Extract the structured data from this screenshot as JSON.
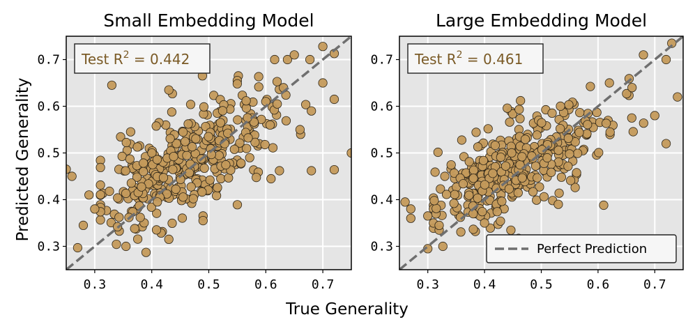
{
  "figure": {
    "xlabel": "True Generality",
    "ylabel": "Predicted Generality"
  },
  "chart_data": [
    {
      "type": "scatter",
      "title": "Small Embedding Model",
      "xlabel": "True Generality",
      "ylabel": "Predicted Generality",
      "xlim": [
        0.25,
        0.75
      ],
      "ylim": [
        0.25,
        0.75
      ],
      "xticks": [
        "0.3",
        "0.4",
        "0.5",
        "0.6",
        "0.7"
      ],
      "yticks": [
        "0.3",
        "0.4",
        "0.5",
        "0.6",
        "0.7"
      ],
      "grid": true,
      "annotation": {
        "prefix": "Test R",
        "sup": "2",
        "suffix": " = 0.442"
      },
      "reference_line": "y = x",
      "seed": 11,
      "slope": 0.58,
      "spread": 0.055,
      "n": 360,
      "points": [
        [
          0.33,
          0.645
        ],
        [
          0.27,
          0.297
        ],
        [
          0.28,
          0.345
        ],
        [
          0.26,
          0.45
        ],
        [
          0.3,
          0.38
        ],
        [
          0.29,
          0.41
        ],
        [
          0.39,
          0.287
        ],
        [
          0.43,
          0.315
        ],
        [
          0.43,
          0.635
        ],
        [
          0.55,
          0.655
        ],
        [
          0.55,
          0.648
        ],
        [
          0.65,
          0.71
        ],
        [
          0.7,
          0.728
        ],
        [
          0.72,
          0.713
        ],
        [
          0.7,
          0.65
        ],
        [
          0.72,
          0.615
        ],
        [
          0.6,
          0.61
        ],
        [
          0.62,
          0.605
        ],
        [
          0.75,
          0.5
        ],
        [
          0.72,
          0.464
        ],
        [
          0.68,
          0.462
        ],
        [
          0.49,
          0.365
        ],
        [
          0.49,
          0.355
        ],
        [
          0.25,
          0.465
        ],
        [
          0.34,
          0.342
        ],
        [
          0.36,
          0.362
        ],
        [
          0.37,
          0.338
        ],
        [
          0.66,
          0.55
        ],
        [
          0.68,
          0.59
        ]
      ],
      "point_color": "#c49a5b",
      "background": "#e5e5e5"
    },
    {
      "type": "scatter",
      "title": "Large Embedding Model",
      "xlabel": "True Generality",
      "ylabel": "Predicted Generality",
      "xlim": [
        0.25,
        0.75
      ],
      "ylim": [
        0.25,
        0.75
      ],
      "xticks": [
        "0.3",
        "0.4",
        "0.5",
        "0.6",
        "0.7"
      ],
      "yticks": [
        "0.3",
        "0.4",
        "0.5",
        "0.6",
        "0.7"
      ],
      "grid": true,
      "annotation": {
        "prefix": "Test R",
        "sup": "2",
        "suffix": " = 0.461"
      },
      "reference_line": "y = x",
      "legend": {
        "label": "Perfect Prediction",
        "position": "lower right"
      },
      "seed": 29,
      "slope": 0.52,
      "spread": 0.045,
      "n": 360,
      "points": [
        [
          0.27,
          0.36
        ],
        [
          0.26,
          0.395
        ],
        [
          0.27,
          0.38
        ],
        [
          0.3,
          0.295
        ],
        [
          0.3,
          0.365
        ],
        [
          0.31,
          0.35
        ],
        [
          0.32,
          0.335
        ],
        [
          0.32,
          0.345
        ],
        [
          0.44,
          0.596
        ],
        [
          0.45,
          0.688
        ],
        [
          0.46,
          0.317
        ],
        [
          0.48,
          0.312
        ],
        [
          0.68,
          0.71
        ],
        [
          0.72,
          0.7
        ],
        [
          0.73,
          0.735
        ],
        [
          0.74,
          0.62
        ],
        [
          0.72,
          0.52
        ],
        [
          0.7,
          0.58
        ],
        [
          0.62,
          0.65
        ],
        [
          0.66,
          0.64
        ],
        [
          0.61,
          0.388
        ],
        [
          0.52,
          0.398
        ],
        [
          0.53,
          0.39
        ],
        [
          0.33,
          0.45
        ],
        [
          0.38,
          0.37
        ],
        [
          0.4,
          0.35
        ]
      ],
      "point_color": "#c49a5b",
      "background": "#e5e5e5"
    }
  ]
}
